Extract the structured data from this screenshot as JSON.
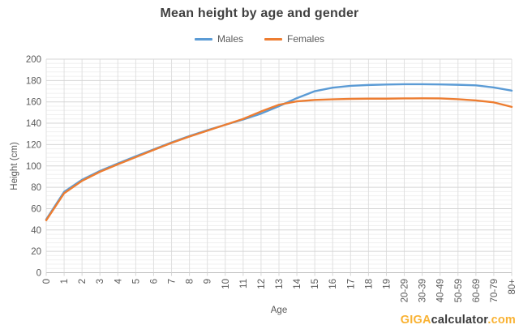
{
  "chart": {
    "title": "Mean height by age and gender",
    "x_axis_title": "Age",
    "y_axis_title": "Height (cm)"
  },
  "legend": {
    "items": [
      "Males",
      "Females"
    ]
  },
  "logo": {
    "giga": "GIGA",
    "calculator": "calculator",
    "com": ".com"
  },
  "colors": {
    "males_line": "#5B9BD5",
    "females_line": "#ED7D31",
    "title_text": "#404040",
    "axis_text": "#595959",
    "major_grid": "#d6d6d6",
    "minor_grid": "#f0f0f0",
    "vertical_grid": "#e0e0e0",
    "axis_line": "#bfbfbf",
    "logo_yellow": "#F9B233",
    "logo_dark": "#3A3A3A",
    "background": "#ffffff"
  },
  "chart_data": {
    "type": "line",
    "title": "Mean height by age and gender",
    "xlabel": "Age",
    "ylabel": "Height (cm)",
    "categories": [
      "0",
      "1",
      "2",
      "3",
      "4",
      "5",
      "6",
      "7",
      "8",
      "9",
      "10",
      "11",
      "12",
      "13",
      "14",
      "15",
      "16",
      "17",
      "18",
      "19",
      "20-29",
      "30-39",
      "40-49",
      "50-59",
      "60-69",
      "70-79",
      "80+"
    ],
    "series": [
      {
        "name": "Males",
        "color": "#5B9BD5",
        "values": [
          49.9,
          75.7,
          87,
          95.3,
          102.3,
          109,
          115.5,
          122,
          128,
          133.5,
          138.5,
          143.5,
          149,
          156,
          163.5,
          170,
          173.3,
          175,
          175.8,
          176.2,
          176.5,
          176.5,
          176.3,
          176,
          175.5,
          173.5,
          170.5
        ]
      },
      {
        "name": "Females",
        "color": "#ED7D31",
        "values": [
          49.1,
          74.4,
          86,
          94.5,
          101.5,
          108.2,
          115,
          121.5,
          127.5,
          133,
          138.5,
          144,
          151,
          157.3,
          160.5,
          161.8,
          162.4,
          162.8,
          163,
          163,
          163.2,
          163.3,
          163.2,
          162.5,
          161.3,
          159.5,
          155.3
        ]
      }
    ],
    "ylim": [
      0,
      200
    ],
    "y_major_ticks": [
      0,
      20,
      40,
      60,
      80,
      100,
      120,
      140,
      160,
      180,
      200
    ],
    "y_minor_step": 4,
    "grid": true,
    "legend_position": "top"
  }
}
